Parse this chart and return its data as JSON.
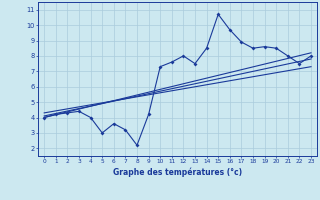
{
  "xlabel": "Graphe des températures (°c)",
  "bg_color": "#cce8f0",
  "line_color": "#1a3a9a",
  "grid_color": "#aaccdd",
  "xlim": [
    -0.5,
    23.5
  ],
  "ylim": [
    1.5,
    11.5
  ],
  "xticks": [
    0,
    1,
    2,
    3,
    4,
    5,
    6,
    7,
    8,
    9,
    10,
    11,
    12,
    13,
    14,
    15,
    16,
    17,
    18,
    19,
    20,
    21,
    22,
    23
  ],
  "yticks": [
    2,
    3,
    4,
    5,
    6,
    7,
    8,
    9,
    10,
    11
  ],
  "main_data": [
    [
      0,
      4.0
    ],
    [
      1,
      4.2
    ],
    [
      2,
      4.3
    ],
    [
      3,
      4.4
    ],
    [
      4,
      4.0
    ],
    [
      5,
      3.0
    ],
    [
      6,
      3.6
    ],
    [
      7,
      3.2
    ],
    [
      8,
      2.2
    ],
    [
      9,
      4.2
    ],
    [
      10,
      7.3
    ],
    [
      11,
      7.6
    ],
    [
      12,
      8.0
    ],
    [
      13,
      7.5
    ],
    [
      14,
      8.5
    ],
    [
      15,
      10.7
    ],
    [
      16,
      9.7
    ],
    [
      17,
      8.9
    ],
    [
      18,
      8.5
    ],
    [
      19,
      8.6
    ],
    [
      20,
      8.5
    ],
    [
      21,
      8.0
    ],
    [
      22,
      7.5
    ],
    [
      23,
      8.0
    ]
  ],
  "trend_lines": [
    [
      [
        0,
        4.0
      ],
      [
        23,
        8.2
      ]
    ],
    [
      [
        0,
        4.1
      ],
      [
        23,
        7.8
      ]
    ],
    [
      [
        0,
        4.3
      ],
      [
        23,
        7.3
      ]
    ]
  ]
}
